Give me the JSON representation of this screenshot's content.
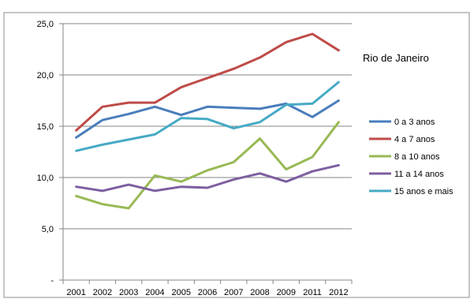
{
  "chart_data": {
    "type": "line",
    "title": "Rio de Janeiro",
    "xlabel": "",
    "ylabel": "",
    "categories": [
      "2001",
      "2002",
      "2003",
      "2004",
      "2005",
      "2006",
      "2007",
      "2008",
      "2009",
      "2011",
      "2012"
    ],
    "ylim": [
      0,
      25
    ],
    "yticks": [
      {
        "value": 0,
        "label": "-"
      },
      {
        "value": 5,
        "label": "5,0"
      },
      {
        "value": 10,
        "label": "10,0"
      },
      {
        "value": 15,
        "label": "15,0"
      },
      {
        "value": 20,
        "label": "20,0"
      },
      {
        "value": 25,
        "label": "25,0"
      }
    ],
    "grid": true,
    "legend_position": "right",
    "series": [
      {
        "name": "0 a 3 anos",
        "color": "#4a7ebb",
        "values": [
          13.9,
          15.6,
          16.2,
          16.9,
          16.1,
          16.9,
          16.8,
          16.7,
          17.2,
          15.9,
          17.5
        ]
      },
      {
        "name": "4 a 7 anos",
        "color": "#be4b48",
        "values": [
          14.6,
          16.9,
          17.3,
          17.3,
          18.8,
          19.7,
          20.6,
          21.7,
          23.2,
          24.0,
          22.4
        ]
      },
      {
        "name": "8 a 10 anos",
        "color": "#98b954",
        "values": [
          8.2,
          7.4,
          7.0,
          10.2,
          9.6,
          10.7,
          11.5,
          13.8,
          10.8,
          12.0,
          15.4
        ]
      },
      {
        "name": "11 a 14 anos",
        "color": "#7d5fa0",
        "values": [
          9.1,
          8.7,
          9.3,
          8.7,
          9.1,
          9.0,
          9.8,
          10.4,
          9.6,
          10.6,
          11.2
        ]
      },
      {
        "name": "15 anos e mais",
        "color": "#46aac5",
        "values": [
          12.6,
          13.2,
          13.7,
          14.2,
          15.8,
          15.7,
          14.8,
          15.4,
          17.1,
          17.2,
          19.3
        ]
      }
    ]
  }
}
